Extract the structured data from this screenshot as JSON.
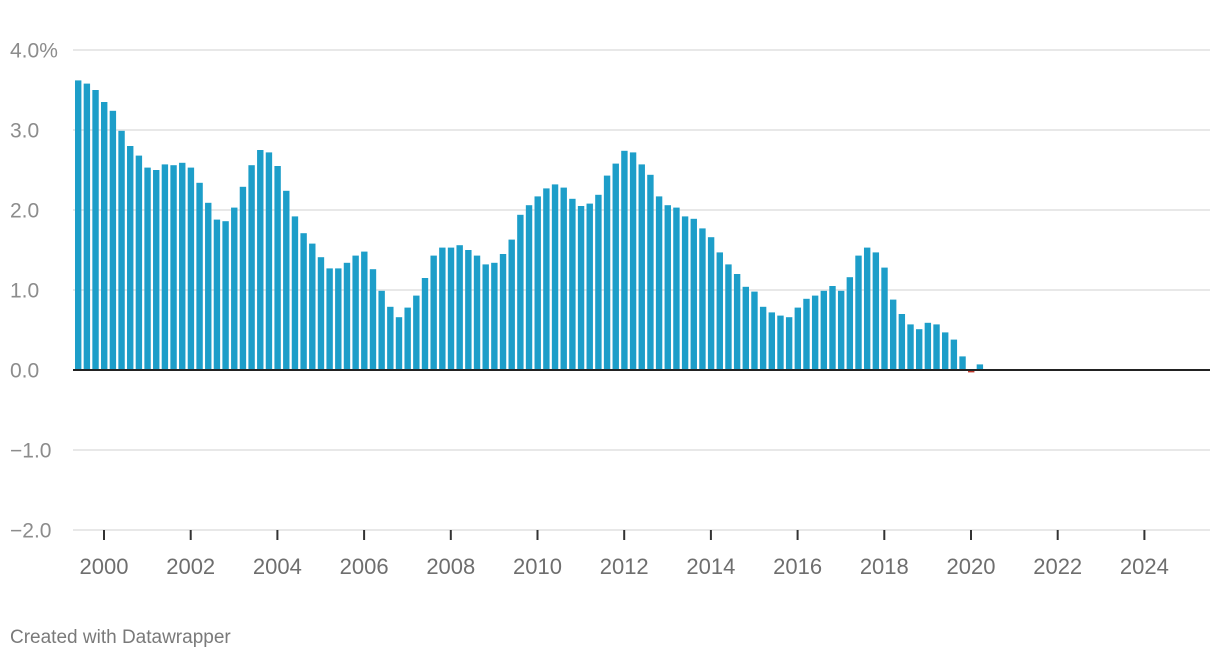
{
  "footer": {
    "credit": "Created with Datawrapper"
  },
  "colors": {
    "positive_bar": "#1d9ec9",
    "negative_bar": "#c0392b",
    "gridline": "#e1e1e1",
    "zero_line": "#222222"
  },
  "chart_data": {
    "type": "bar",
    "title": "",
    "xlabel": "",
    "ylabel": "",
    "ylim": [
      -2.0,
      4.0
    ],
    "y_ticks": [
      {
        "value": 4.0,
        "label": "4.0%"
      },
      {
        "value": 3.0,
        "label": "3.0"
      },
      {
        "value": 2.0,
        "label": "2.0"
      },
      {
        "value": 1.0,
        "label": "1.0"
      },
      {
        "value": 0.0,
        "label": "0.0"
      },
      {
        "value": -1.0,
        "label": "−1.0"
      },
      {
        "value": -2.0,
        "label": "−2.0"
      }
    ],
    "x_ticks": [
      "2000",
      "2002",
      "2004",
      "2006",
      "2008",
      "2010",
      "2012",
      "2014",
      "2016",
      "2018",
      "2020",
      "2022",
      "2024"
    ],
    "x_start_quarter": "1999 Q2",
    "frequency": "quarterly",
    "grid": true,
    "legend": "none",
    "values": [
      3.62,
      3.58,
      3.5,
      3.35,
      3.24,
      2.99,
      2.8,
      2.68,
      2.53,
      2.5,
      2.57,
      2.56,
      2.59,
      2.53,
      2.34,
      2.09,
      1.88,
      1.86,
      2.03,
      2.29,
      2.56,
      2.75,
      2.72,
      2.55,
      2.24,
      1.92,
      1.71,
      1.58,
      1.41,
      1.27,
      1.27,
      1.34,
      1.43,
      1.48,
      1.26,
      0.99,
      0.79,
      0.66,
      0.78,
      0.93,
      1.15,
      1.43,
      1.53,
      1.53,
      1.56,
      1.5,
      1.43,
      1.32,
      1.34,
      1.45,
      1.63,
      1.94,
      2.06,
      2.17,
      2.27,
      2.32,
      2.28,
      2.14,
      2.05,
      2.08,
      2.19,
      2.43,
      2.58,
      2.74,
      2.72,
      2.57,
      2.44,
      2.17,
      2.06,
      2.03,
      1.92,
      1.89,
      1.77,
      1.66,
      1.47,
      1.32,
      1.2,
      1.04,
      0.98,
      0.79,
      0.72,
      0.68,
      0.66,
      0.78,
      0.89,
      0.93,
      0.99,
      1.05,
      0.99,
      1.16,
      1.43,
      1.53,
      1.47,
      1.28,
      0.88,
      0.7,
      0.57,
      0.51,
      0.59,
      0.57,
      0.47,
      0.38,
      0.17,
      -0.03,
      0.07
    ]
  }
}
